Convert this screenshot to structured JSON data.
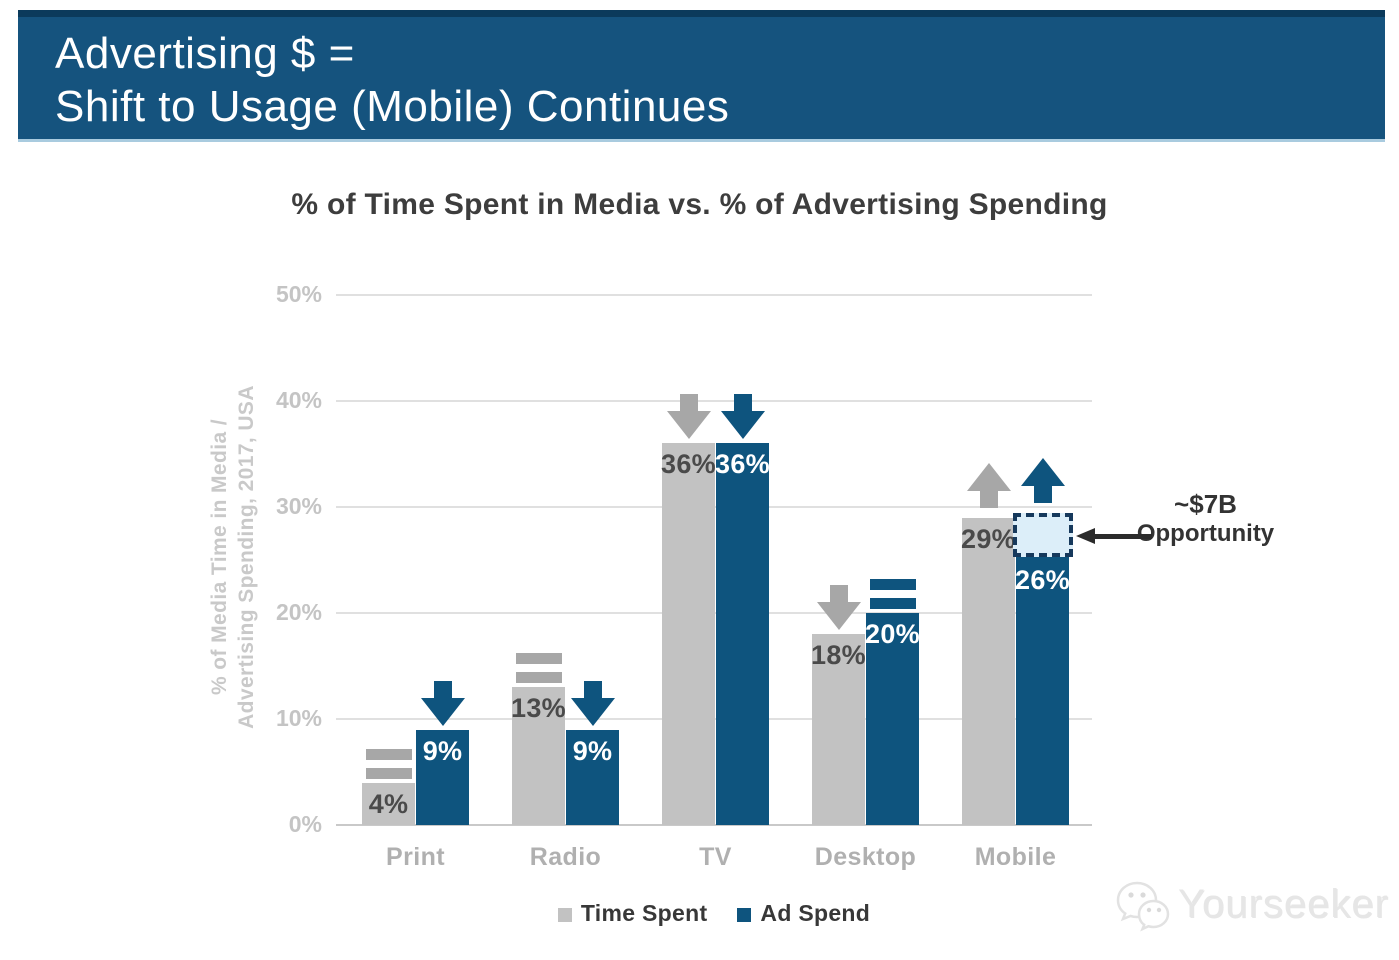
{
  "header": {
    "line1": "Advertising $ =",
    "line2": "Shift to Usage (Mobile) Continues",
    "bg_color": "#15537E",
    "text_color": "#FFFFFF"
  },
  "chart_data": {
    "type": "bar",
    "title": "% of Time Spent in Media vs. % of Advertising Spending",
    "ylabel": "% of Media Time in Media / Advertising Spending, 2017, USA",
    "ylabel_lines": [
      "% of Media Time in Media /",
      "Advertising Spending, 2017, USA"
    ],
    "categories": [
      "Print",
      "Radio",
      "TV",
      "Desktop",
      "Mobile"
    ],
    "series": [
      {
        "name": "Time Spent",
        "color": "#C2C2C2",
        "label_color": "#4A4A4A",
        "icon_color": "#A7A7A7",
        "values": [
          4,
          13,
          36,
          18,
          29
        ],
        "trends": [
          "equal",
          "equal",
          "down",
          "down",
          "up"
        ]
      },
      {
        "name": "Ad Spend",
        "color": "#0E547E",
        "label_color": "#FFFFFF",
        "icon_color": "#0E547E",
        "values": [
          9,
          9,
          36,
          20,
          26
        ],
        "trends": [
          "down",
          "down",
          "down",
          "equal",
          "up"
        ]
      }
    ],
    "ylim": [
      0,
      50
    ],
    "yticks": [
      "0%",
      "10%",
      "20%",
      "30%",
      "40%",
      "50%"
    ],
    "value_suffix": "%",
    "grid": true,
    "legend_position": "bottom"
  },
  "annotation": {
    "line1": "~$7B",
    "line2": "Opportunity",
    "target_category": "Mobile",
    "box_fill": "#DCEEF9",
    "box_border": "#16395C",
    "arrow_color": "#2B2B2B"
  },
  "legend": {
    "items": [
      {
        "label": "Time Spent",
        "color": "#C2C2C2"
      },
      {
        "label": "Ad Spend",
        "color": "#0E547E"
      }
    ]
  },
  "watermark": {
    "text": "Yourseeker"
  }
}
